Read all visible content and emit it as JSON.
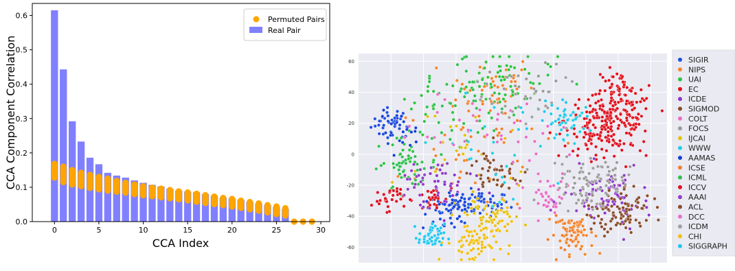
{
  "charts": {
    "left": {
      "chart_data": {
        "type": "bar",
        "xlabel": "CCA Index",
        "ylabel": "CCA Component Correlation",
        "xlim": [
          -2.5,
          31
        ],
        "ylim": [
          0,
          0.635
        ],
        "xticks": [
          "0",
          "5",
          "10",
          "15",
          "20",
          "25",
          "30"
        ],
        "yticks": [
          "0.0",
          "0.1",
          "0.2",
          "0.3",
          "0.4",
          "0.5",
          "0.6"
        ],
        "legend_position": "top-right",
        "series": [
          {
            "name": "Real Pair",
            "type": "bar",
            "color": "#8080ff",
            "x": [
              0,
              1,
              2,
              3,
              4,
              5,
              6,
              7,
              8,
              9,
              10,
              11,
              12,
              13,
              14,
              15,
              16,
              17,
              18,
              19,
              20,
              21,
              22,
              23,
              24,
              25,
              26,
              27,
              28,
              29
            ],
            "values": [
              0.615,
              0.443,
              0.292,
              0.233,
              0.186,
              0.167,
              0.142,
              0.134,
              0.128,
              0.12,
              0.113,
              0.107,
              0.102,
              0.095,
              0.09,
              0.087,
              0.085,
              0.08,
              0.075,
              0.07,
              0.067,
              0.063,
              0.058,
              0.052,
              0.048,
              0.043,
              0.037,
              0.0,
              0.0,
              0.0
            ]
          },
          {
            "name": "Permuted Pairs",
            "type": "scatter",
            "color": "#ffa500",
            "x": [
              0,
              1,
              2,
              3,
              4,
              5,
              6,
              7,
              8,
              9,
              10,
              11,
              12,
              13,
              14,
              15,
              16,
              17,
              18,
              19,
              20,
              21,
              22,
              23,
              24,
              25,
              26,
              27,
              28,
              29
            ],
            "low": [
              0.128,
              0.115,
              0.108,
              0.103,
              0.098,
              0.094,
              0.09,
              0.087,
              0.084,
              0.08,
              0.077,
              0.074,
              0.071,
              0.068,
              0.065,
              0.062,
              0.058,
              0.054,
              0.051,
              0.048,
              0.044,
              0.04,
              0.036,
              0.032,
              0.027,
              0.022,
              0.018,
              0.0,
              0.0,
              0.0
            ],
            "high": [
              0.168,
              0.16,
              0.15,
              0.142,
              0.136,
              0.13,
              0.125,
              0.118,
              0.113,
              0.108,
              0.103,
              0.099,
              0.096,
              0.092,
              0.088,
              0.085,
              0.081,
              0.077,
              0.073,
              0.069,
              0.066,
              0.061,
              0.057,
              0.053,
              0.048,
              0.044,
              0.039,
              0.003,
              0.003,
              0.003
            ]
          }
        ]
      }
    },
    "right": {
      "chart_data": {
        "type": "scatter",
        "xlabel": "",
        "ylabel": "",
        "ylim": [
          -70,
          65
        ],
        "yticks": [
          "60",
          "40",
          "20",
          "0",
          "-20",
          "-40",
          "-60"
        ],
        "background": "#eaeaf2",
        "legend_position": "right",
        "series": [
          {
            "name": "SIGIR",
            "color": "#1f4ee0",
            "clusters": [
              [
                -80,
                20,
                6,
                5,
                35
              ],
              [
                -25,
                -32,
                9,
                4,
                55
              ],
              [
                -45,
                -40,
                8,
                5,
                22
              ]
            ]
          },
          {
            "name": "NIPS",
            "color": "#f5862a",
            "clusters": [
              [
                -20,
                45,
                14,
                10,
                40
              ],
              [
                35,
                -50,
                5,
                7,
                45
              ],
              [
                -35,
                0,
                20,
                20,
                25
              ]
            ]
          },
          {
            "name": "UAI",
            "color": "#2ec441",
            "clusters": [
              [
                -10,
                48,
                16,
                10,
                55
              ],
              [
                -70,
                -5,
                10,
                8,
                30
              ],
              [
                -60,
                25,
                10,
                8,
                20
              ]
            ]
          },
          {
            "name": "EC",
            "color": "#e0101b",
            "clusters": [
              [
                55,
                22,
                14,
                9,
                170
              ],
              [
                60,
                38,
                6,
                8,
                70
              ],
              [
                -55,
                -30,
                6,
                4,
                25
              ]
            ]
          },
          {
            "name": "ICDE",
            "color": "#8c35c9",
            "clusters": [
              [
                60,
                -30,
                10,
                10,
                45
              ],
              [
                -45,
                -20,
                12,
                8,
                30
              ]
            ]
          },
          {
            "name": "SIGMOD",
            "color": "#8a4a23",
            "clusters": [
              [
                65,
                -35,
                8,
                8,
                55
              ],
              [
                -15,
                -15,
                8,
                5,
                25
              ]
            ]
          },
          {
            "name": "COLT",
            "color": "#ea6bc4",
            "clusters": [
              [
                15,
                -30,
                5,
                4,
                20
              ],
              [
                -5,
                10,
                20,
                15,
                20
              ]
            ]
          },
          {
            "name": "FOCS",
            "color": "#9a9a9a",
            "clusters": [
              [
                45,
                -15,
                10,
                7,
                50
              ],
              [
                5,
                42,
                12,
                8,
                25
              ]
            ]
          },
          {
            "name": "IJCAI",
            "color": "#e3c20c",
            "clusters": [
              [
                -20,
                -40,
                10,
                6,
                35
              ],
              [
                -30,
                5,
                22,
                18,
                25
              ]
            ]
          },
          {
            "name": "WWW",
            "color": "#1fd0e5",
            "clusters": [
              [
                30,
                20,
                6,
                5,
                30
              ],
              [
                -20,
                0,
                20,
                18,
                25
              ]
            ]
          },
          {
            "name": "AAMAS",
            "color": "#1440d8",
            "clusters": [
              [
                -40,
                -32,
                6,
                4,
                30
              ],
              [
                -75,
                15,
                6,
                6,
                25
              ]
            ]
          },
          {
            "name": "ICSE",
            "color": "#f08030",
            "clusters": [
              [
                30,
                -52,
                6,
                6,
                35
              ],
              [
                -10,
                20,
                15,
                12,
                20
              ]
            ]
          },
          {
            "name": "ICML",
            "color": "#30c050",
            "clusters": [
              [
                -30,
                35,
                15,
                12,
                45
              ],
              [
                -70,
                -8,
                8,
                6,
                25
              ]
            ]
          },
          {
            "name": "ICCV",
            "color": "#e01020",
            "clusters": [
              [
                -82,
                -28,
                5,
                4,
                30
              ],
              [
                50,
                5,
                10,
                8,
                40
              ]
            ]
          },
          {
            "name": "AAAI",
            "color": "#9040c8",
            "clusters": [
              [
                -60,
                -15,
                10,
                8,
                30
              ],
              [
                50,
                -30,
                12,
                10,
                35
              ]
            ]
          },
          {
            "name": "ACL",
            "color": "#8a5030",
            "clusters": [
              [
                55,
                -40,
                10,
                6,
                40
              ],
              [
                -20,
                -10,
                10,
                8,
                20
              ]
            ]
          },
          {
            "name": "DCC",
            "color": "#e870c8",
            "clusters": [
              [
                -35,
                20,
                15,
                10,
                20
              ],
              [
                10,
                -25,
                10,
                8,
                15
              ]
            ]
          },
          {
            "name": "ICDM",
            "color": "#a0a0a0",
            "clusters": [
              [
                40,
                -20,
                12,
                8,
                45
              ],
              [
                0,
                35,
                15,
                10,
                20
              ]
            ]
          },
          {
            "name": "CHI",
            "color": "#f0c010",
            "clusters": [
              [
                -30,
                -57,
                8,
                7,
                70
              ],
              [
                -15,
                -45,
                5,
                5,
                20
              ]
            ]
          },
          {
            "name": "SIGGRAPH",
            "color": "#20c8f0",
            "clusters": [
              [
                -55,
                -53,
                4,
                4,
                45
              ],
              [
                20,
                25,
                10,
                6,
                20
              ]
            ]
          }
        ]
      }
    }
  }
}
